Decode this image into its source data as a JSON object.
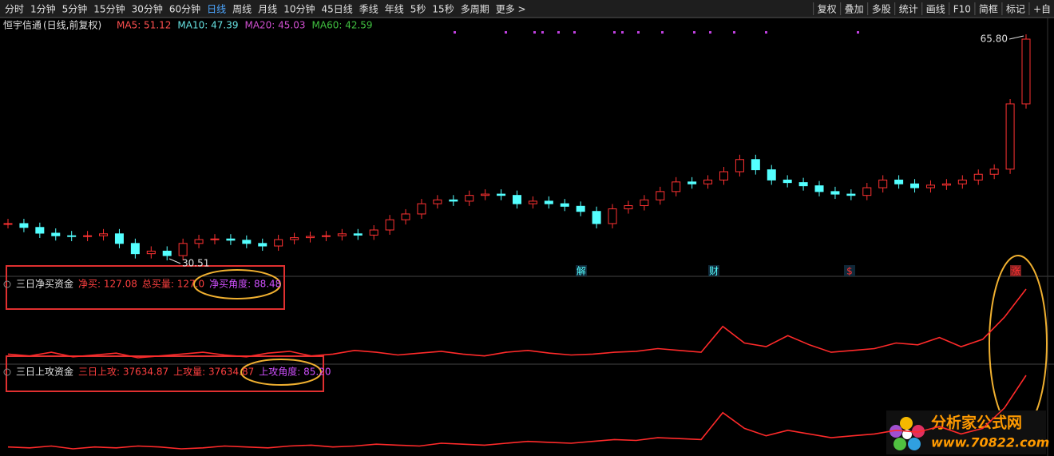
{
  "toolbar": {
    "periods": [
      "分时",
      "1分钟",
      "5分钟",
      "15分钟",
      "30分钟",
      "60分钟",
      "日线",
      "周线",
      "月线",
      "10分钟",
      "45日线",
      "季线",
      "年线",
      "5秒",
      "15秒",
      "多周期",
      "更多 >"
    ],
    "active": "日线",
    "tools": [
      "复权",
      "叠加",
      "多股",
      "统计",
      "画线",
      "F10",
      "简框",
      "标记",
      "+自"
    ]
  },
  "main": {
    "stock": "恒宇信通",
    "mode": "(日线,前复权)",
    "ma": [
      {
        "text": "MA5: 51.12",
        "color": "#ff5050"
      },
      {
        "text": "MA10: 47.39",
        "color": "#66e0e0"
      },
      {
        "text": "MA20: 45.03",
        "color": "#d050d0"
      },
      {
        "text": "MA60: 42.59",
        "color": "#40c040"
      }
    ],
    "high_label": 65.8,
    "high_label_text": "65.80",
    "low_label": 30.51,
    "low_label_text": "30.51",
    "closes": [
      36.5,
      35.9,
      35.0,
      34.6,
      34.5,
      34.6,
      34.9,
      33.4,
      31.8,
      32.2,
      31.5,
      33.4,
      34.0,
      34.1,
      33.9,
      33.4,
      33.0,
      34.0,
      34.3,
      34.5,
      34.6,
      34.9,
      34.7,
      35.5,
      37.1,
      38.0,
      39.6,
      40.2,
      40.0,
      40.9,
      41.1,
      40.9,
      39.6,
      40.0,
      39.6,
      39.2,
      38.4,
      36.5,
      38.8,
      39.3,
      40.2,
      41.5,
      43.0,
      42.7,
      43.3,
      44.6,
      46.5,
      44.9,
      43.3,
      42.9,
      42.4,
      41.5,
      41.1,
      40.9,
      42.1,
      43.3,
      42.7,
      42.1,
      42.5,
      42.7,
      43.3,
      44.2,
      45.0,
      55.2,
      65.3
    ],
    "events": [
      "解",
      "财",
      "$",
      "涨"
    ]
  },
  "panels": [
    {
      "name": "三日净买资金",
      "items": [
        "净买: 127.08",
        "总买量: 127.0"
      ],
      "angle": "净买角度: 88.48",
      "values": [
        18,
        16,
        20,
        15,
        17,
        19,
        14,
        16,
        18,
        20,
        17,
        15,
        19,
        21,
        16,
        18,
        22,
        20,
        17,
        19,
        21,
        18,
        16,
        20,
        22,
        19,
        17,
        18,
        20,
        21,
        24,
        22,
        20,
        48,
        30,
        26,
        38,
        28,
        20,
        22,
        24,
        30,
        28,
        36,
        26,
        34,
        58,
        88.48
      ]
    },
    {
      "name": "三日上攻资金",
      "items": [
        "三日上攻: 37634.87",
        "上攻量: 37634.87"
      ],
      "angle": "上攻角度: 85.20",
      "values": [
        8,
        7,
        9,
        6,
        8,
        7,
        9,
        8,
        6,
        7,
        9,
        8,
        7,
        9,
        10,
        8,
        9,
        11,
        10,
        9,
        12,
        11,
        10,
        12,
        14,
        13,
        12,
        14,
        16,
        15,
        18,
        17,
        16,
        45,
        28,
        20,
        26,
        22,
        18,
        20,
        22,
        26,
        24,
        30,
        22,
        28,
        50,
        85.2
      ]
    }
  ],
  "logo": {
    "title": "分析家公式网",
    "url": "www.70822.com"
  }
}
